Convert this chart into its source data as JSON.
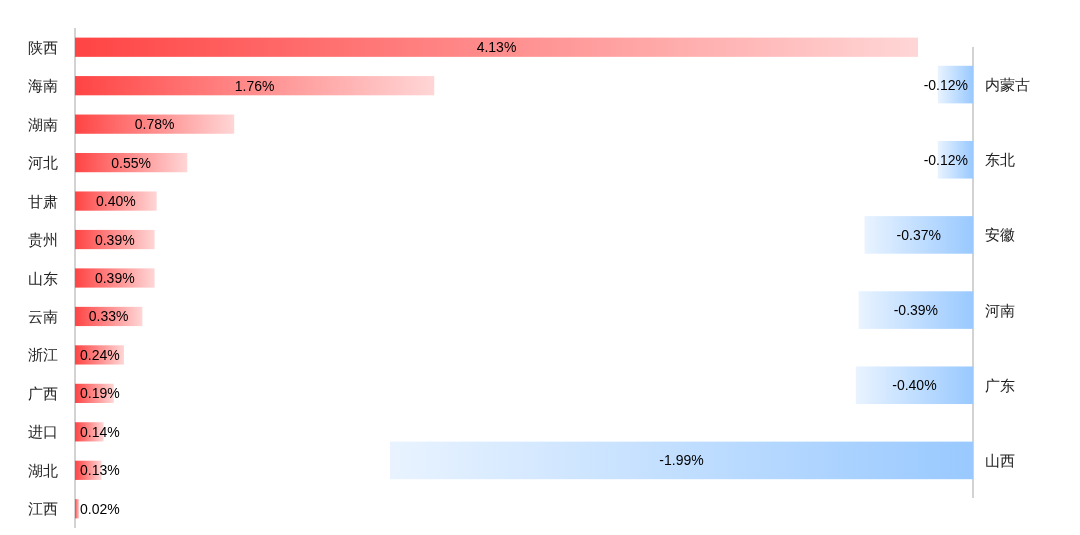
{
  "chart_data": [
    {
      "type": "bar",
      "orientation": "horizontal",
      "categories": [
        "陕西",
        "海南",
        "湖南",
        "河北",
        "甘肃",
        "贵州",
        "山东",
        "云南",
        "浙江",
        "广西",
        "进口",
        "湖北",
        "江西"
      ],
      "values": [
        4.13,
        1.76,
        0.78,
        0.55,
        0.4,
        0.39,
        0.39,
        0.33,
        0.24,
        0.19,
        0.14,
        0.13,
        0.02
      ],
      "value_labels": [
        "4.13%",
        "1.76%",
        "0.78%",
        "0.55%",
        "0.40%",
        "0.39%",
        "0.39%",
        "0.33%",
        "0.24%",
        "0.19%",
        "0.14%",
        "0.13%",
        "0.02%"
      ],
      "color": "#ff4444"
    },
    {
      "type": "bar",
      "orientation": "horizontal",
      "categories": [
        "内蒙古",
        "东北",
        "安徽",
        "河南",
        "广东",
        "山西"
      ],
      "values": [
        -0.12,
        -0.12,
        -0.37,
        -0.39,
        -0.4,
        -1.99
      ],
      "value_labels": [
        "-0.12%",
        "-0.12%",
        "-0.37%",
        "-0.39%",
        "-0.40%",
        "-1.99%"
      ],
      "color": "#99c9ff"
    }
  ]
}
